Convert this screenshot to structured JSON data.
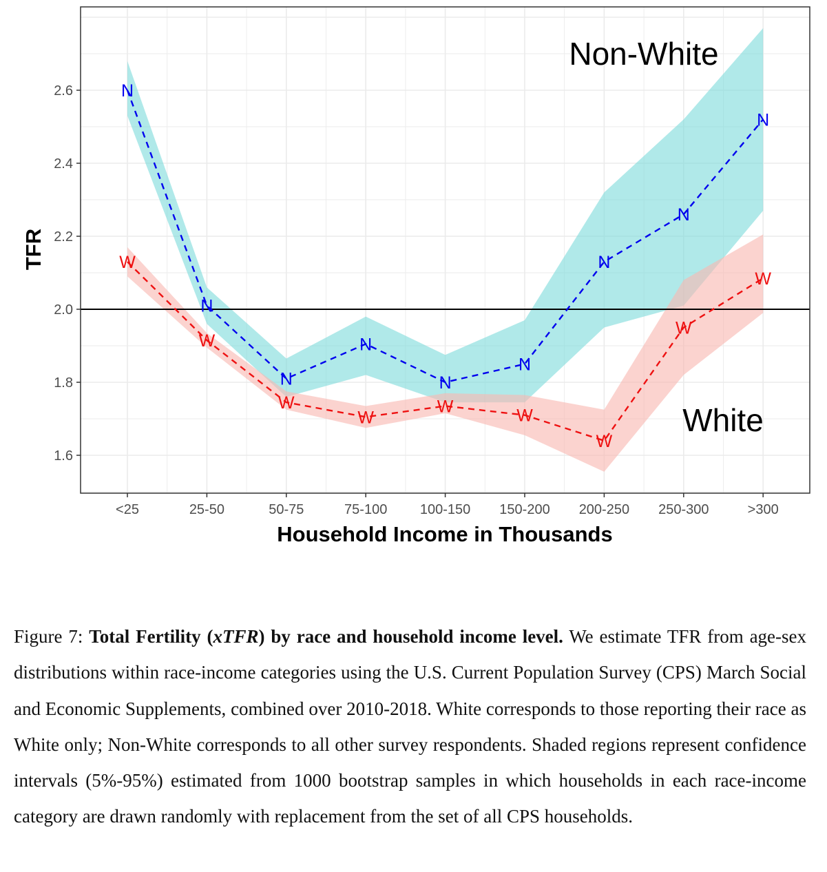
{
  "chart_data": {
    "type": "line",
    "title": "",
    "xlabel": "Household Income in Thousands",
    "ylabel": "TFR",
    "categories": [
      "<25",
      "25-50",
      "50-75",
      "75-100",
      "100-150",
      "150-200",
      "200-250",
      "250-300",
      ">300"
    ],
    "ylim": [
      1.5,
      2.8
    ],
    "yticks": [
      "1.6",
      "1.8",
      "2.0",
      "2.2",
      "2.4",
      "2.6"
    ],
    "reference_line": 2.0,
    "grid": true,
    "series": [
      {
        "name": "Non-White",
        "marker": "N",
        "color": "#0000ee",
        "band_color": "#7fdcdc",
        "values": [
          2.6,
          2.01,
          1.81,
          1.905,
          1.8,
          1.85,
          2.13,
          2.26,
          2.52
        ],
        "lower": [
          2.53,
          1.96,
          1.76,
          1.82,
          1.745,
          1.745,
          1.95,
          2.01,
          2.27
        ],
        "upper": [
          2.68,
          2.06,
          1.865,
          1.98,
          1.875,
          1.97,
          2.32,
          2.52,
          2.77
        ]
      },
      {
        "name": "White",
        "marker": "W",
        "color": "#ee1111",
        "band_color": "#f9b8b2",
        "values": [
          2.13,
          1.915,
          1.745,
          1.705,
          1.735,
          1.71,
          1.64,
          1.95,
          2.085
        ],
        "lower": [
          2.09,
          1.895,
          1.725,
          1.675,
          1.715,
          1.655,
          1.555,
          1.82,
          1.99
        ],
        "upper": [
          2.17,
          1.935,
          1.775,
          1.735,
          1.77,
          1.765,
          1.725,
          2.08,
          2.205
        ]
      }
    ]
  },
  "caption": {
    "figure_label": "Figure 7:",
    "bold_before": "Total Fertility (",
    "math": "xTFR",
    "bold_after": ") by race and household income level.",
    "body": "We estimate TFR from age-sex distributions within race-income categories using the U.S. Current Population Survey (CPS) March Social and Economic Supplements, combined over 2010-2018. White corresponds to those reporting their race as White only; Non-White corresponds to all other survey respondents. Shaded regions represent confidence intervals (5%-95%) estimated from 1000 bootstrap samples in which households in each race-income category are drawn randomly with replacement from the set of all CPS households."
  }
}
